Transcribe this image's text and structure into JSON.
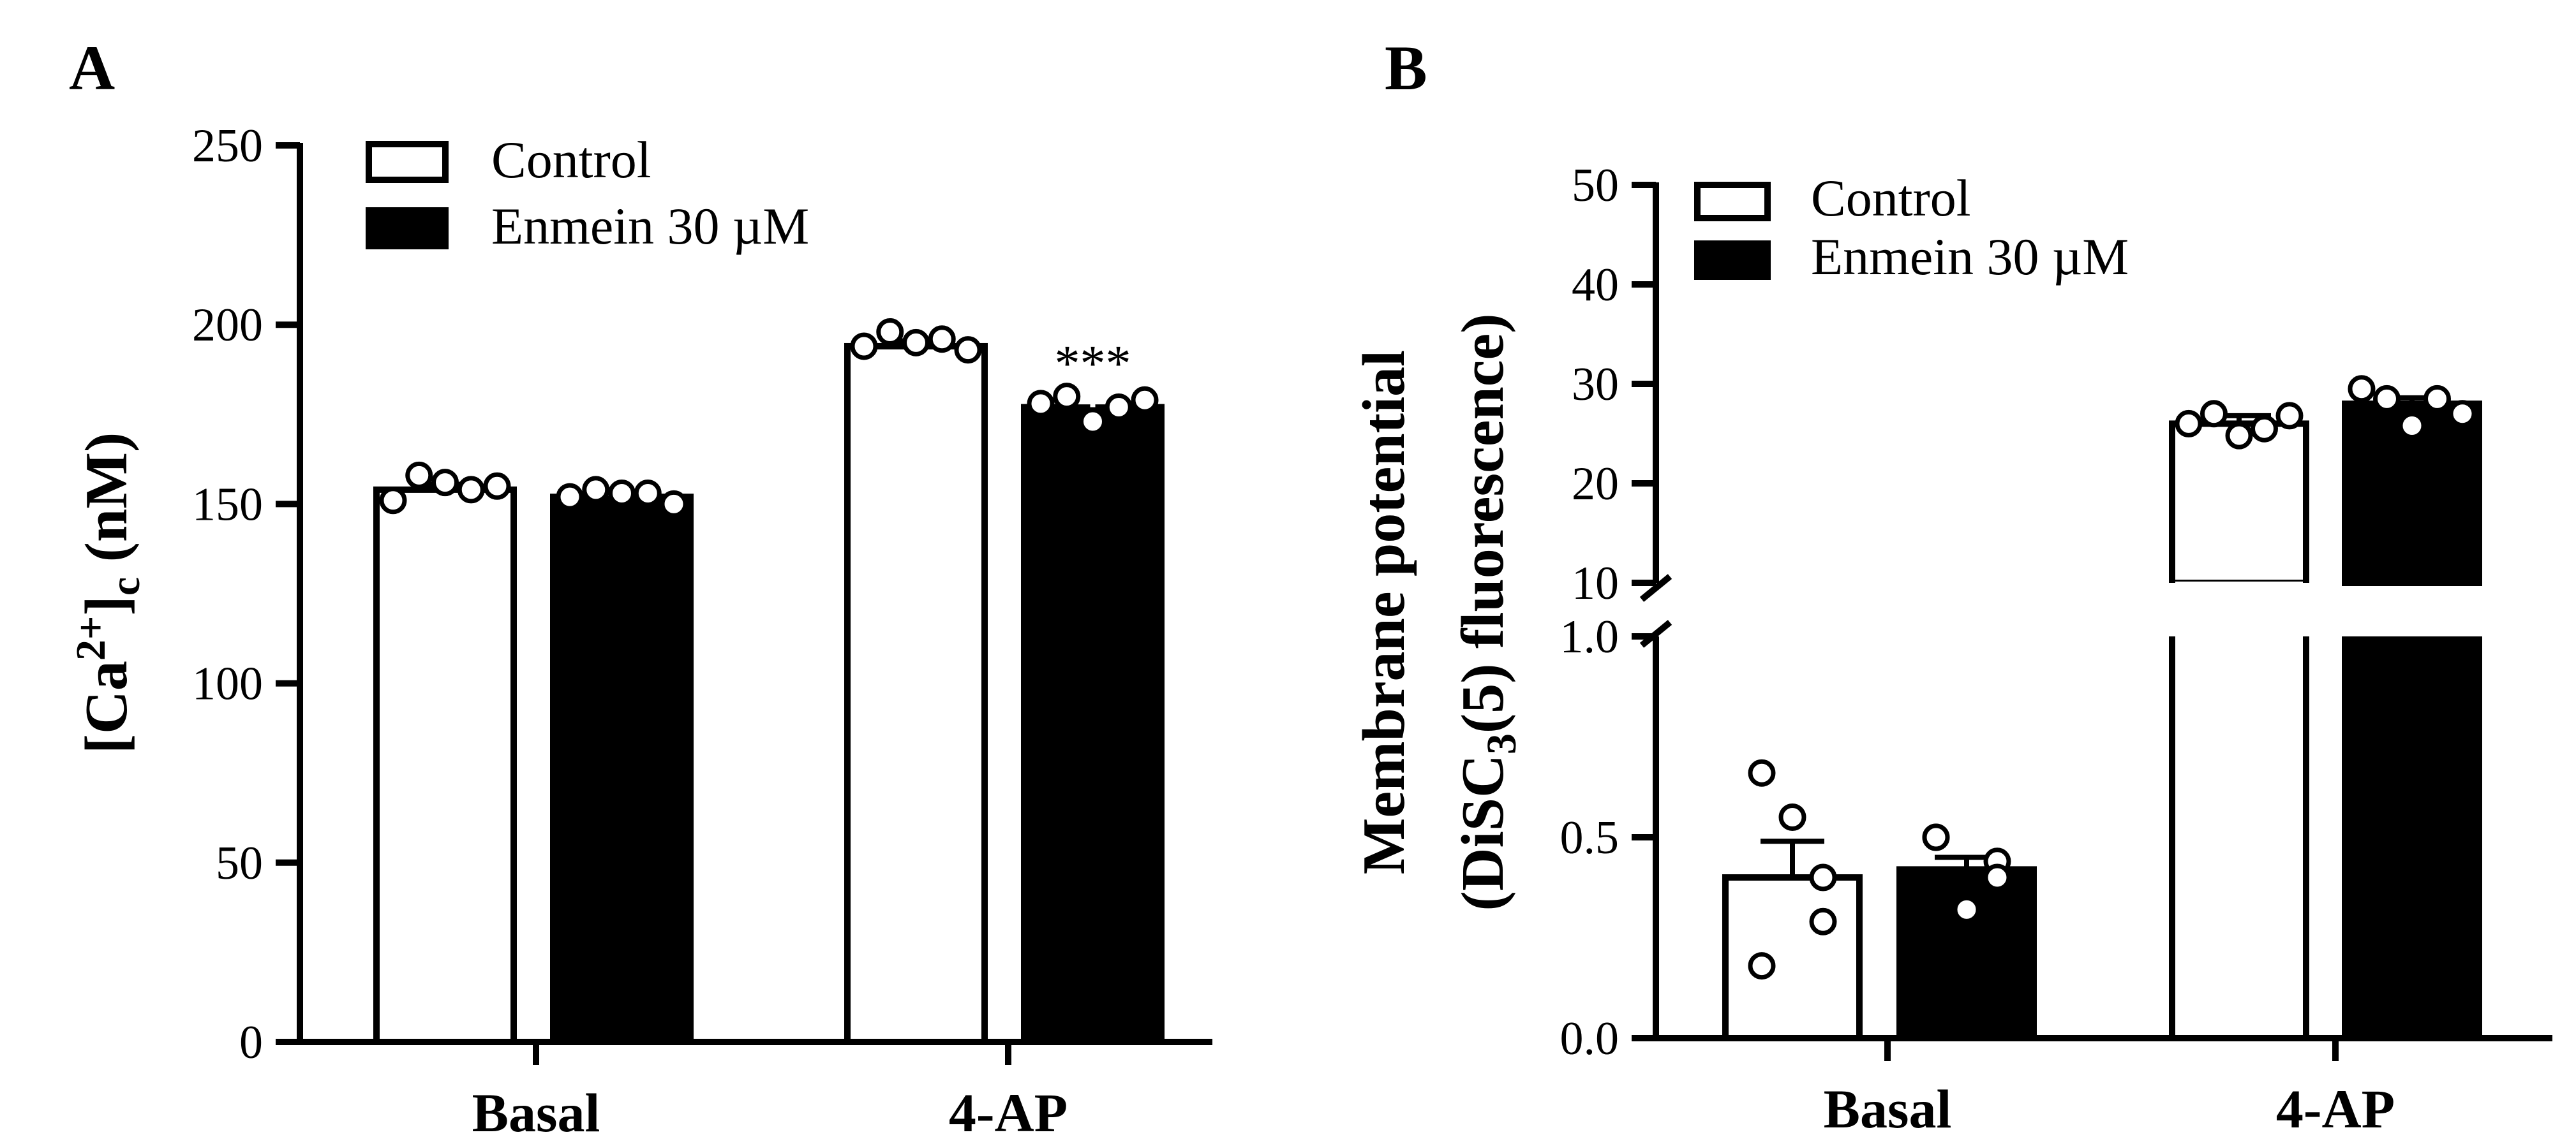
{
  "chart_data": [
    {
      "panel": "A",
      "type": "bar",
      "ylabel": {
        "main": "[Ca",
        "sup": "2+",
        "close": "]",
        "sub": "c",
        "unit": " (nM)"
      },
      "categories": [
        "Basal",
        "4-AP"
      ],
      "ylim": [
        0,
        250
      ],
      "yticks": [
        "0",
        "50",
        "100",
        "150",
        "200",
        "250"
      ],
      "legend": [
        "Control",
        "Enmein 30 µM"
      ],
      "series": [
        {
          "name": "Control",
          "color": "#ffffff",
          "values": [
            154,
            194
          ],
          "errors": [
            1.5,
            1.5
          ],
          "points": [
            [
              151,
              158,
              156,
              154,
              155
            ],
            [
              194,
              198,
              195,
              196,
              193
            ]
          ]
        },
        {
          "name": "Enmein 30 µM",
          "color": "#000000",
          "values": [
            152,
            177
          ],
          "errors": [
            1,
            1.5
          ],
          "points": [
            [
              152,
              154,
              153,
              153,
              150
            ],
            [
              178,
              180,
              173,
              177,
              179
            ]
          ]
        }
      ],
      "annotations": [
        {
          "text": "***",
          "category": "4-AP",
          "series": "Enmein 30 µM"
        }
      ]
    },
    {
      "panel": "B",
      "type": "bar",
      "ylabel": {
        "line1": "Membrane potential",
        "line2_pre": "(DiSC",
        "line2_sub": "3",
        "line2_post": "(5) fluorescence)"
      },
      "categories": [
        "Basal",
        "4-AP"
      ],
      "axis_break": true,
      "lower_segment": {
        "ylim": [
          0,
          1.0
        ],
        "yticks": [
          "0.0",
          "0.5",
          "1.0"
        ]
      },
      "upper_segment": {
        "ylim": [
          10,
          50
        ],
        "yticks": [
          "10",
          "20",
          "30",
          "40",
          "50"
        ]
      },
      "legend": [
        "Control",
        "Enmein 30 µM"
      ],
      "series": [
        {
          "name": "Control",
          "color": "#ffffff",
          "values": [
            0.4,
            26
          ],
          "errors": [
            0.09,
            0.8
          ],
          "points": [
            [
              0.18,
              0.66,
              0.55,
              0.29,
              0.4
            ],
            [
              26,
              27,
              24.8,
              25.5,
              26.8
            ]
          ]
        },
        {
          "name": "Enmein 30 µM",
          "color": "#000000",
          "values": [
            0.42,
            28
          ],
          "errors": [
            0.03,
            0.6
          ],
          "points": [
            [
              0.5,
              0.5,
              0.32,
              0.44,
              0.4
            ],
            [
              29.5,
              28.5,
              25.8,
              28.5,
              27
            ]
          ]
        }
      ]
    }
  ]
}
